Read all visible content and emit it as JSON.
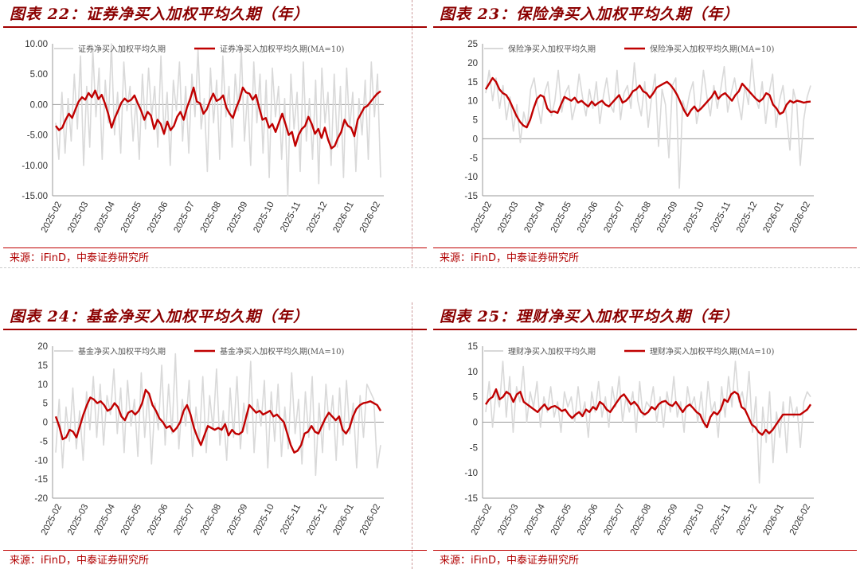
{
  "charts": [
    {
      "title": "图表 22：证券净买入加权平均久期（年）",
      "source": "来源：iFinD，中泰证券研究所",
      "chart_data": {
        "type": "line",
        "title": "图表 22：证券净买入加权平均久期（年）",
        "xlabel": "",
        "ylabel": "",
        "x_ticks": [
          "2025-02",
          "2025-03",
          "2025-04",
          "2025-05",
          "2025-06",
          "2025-07",
          "2025-08",
          "2025-09",
          "2025-10",
          "2025-11",
          "2025-12",
          "2026-01",
          "2026-02"
        ],
        "ylim": [
          -15,
          10
        ],
        "y_ticks": [
          10,
          5,
          0,
          -5,
          -10,
          -15
        ],
        "y_tick_labels": [
          "10.00",
          "5.00",
          "0.00",
          "-5.00",
          "-10.00",
          "-15.00"
        ],
        "legend_placement": "top",
        "series": [
          {
            "name": "证券净买入加权平均久期",
            "color": "#d9d9d9",
            "values": [
              -3,
              -9,
              2,
              -8,
              1,
              -6,
              5,
              -4,
              8,
              -10,
              3,
              -7,
              9,
              -2,
              6,
              -9,
              4,
              -3,
              10,
              -5,
              2,
              -8,
              7,
              -1,
              3,
              -6,
              1,
              -9,
              5,
              -4,
              6,
              -2,
              3,
              -7,
              8,
              -5,
              2,
              -10,
              4,
              -1,
              7,
              -6,
              3,
              -8,
              5,
              -2,
              9,
              -4,
              1,
              -11,
              6,
              -3,
              4,
              -9,
              8,
              -2,
              3,
              -7,
              5,
              -1,
              9,
              -6,
              2,
              -10,
              7,
              -3,
              5,
              -8,
              4,
              -12,
              6,
              -2,
              3,
              -9,
              1,
              -15,
              5,
              -4,
              2,
              -11,
              7,
              -6,
              1,
              -9,
              4,
              -13,
              6,
              -3,
              2,
              -10,
              5,
              -7,
              3,
              -12,
              6,
              -4,
              2,
              -11,
              1,
              -5,
              4,
              -9,
              7,
              -2,
              5,
              -12
            ]
          },
          {
            "name": "证券净买入加权平均久期(MA=10)",
            "color": "#c00000",
            "values": [
              -3.5,
              -4.2,
              -3.8,
              -2.5,
              -1.5,
              -2.2,
              -0.8,
              0.5,
              1.2,
              0.8,
              1.9,
              1.2,
              2.3,
              0.9,
              1.6,
              0.2,
              -1.5,
              -3.8,
              -2.2,
              -1.0,
              0.3,
              1.0,
              0.5,
              0.8,
              1.5,
              0.2,
              -1.0,
              -2.5,
              -1.2,
              -1.8,
              -4.0,
              -2.5,
              -3.2,
              -4.8,
              -2.8,
              -4.2,
              -3.5,
              -2.0,
              -1.2,
              -2.5,
              -0.5,
              1.0,
              2.8,
              0.5,
              0.2,
              -1.5,
              -0.8,
              0.6,
              1.8,
              0.6,
              0.9,
              1.5,
              -0.5,
              -1.5,
              -2.2,
              -0.5,
              0.8,
              2.8,
              2.0,
              1.8,
              0.8,
              1.6,
              -0.5,
              -2.5,
              -2.2,
              -3.8,
              -3.2,
              -4.5,
              -3.0,
              -1.5,
              -3.2,
              -5.0,
              -4.5,
              -6.8,
              -5.0,
              -4.0,
              -3.5,
              -2.0,
              -3.2,
              -4.8,
              -4.0,
              -5.5,
              -3.8,
              -5.8,
              -7.2,
              -6.8,
              -5.5,
              -4.5,
              -2.5,
              -3.5,
              -3.8,
              -5.2,
              -2.5,
              -1.5,
              -0.5,
              -0.2,
              0.5,
              1.2,
              1.8,
              2.2
            ]
          }
        ]
      }
    },
    {
      "title": "图表 23：保险净买入加权平均久期（年）",
      "source": "来源：iFinD，中泰证券研究所",
      "chart_data": {
        "type": "line",
        "title": "图表 23：保险净买入加权平均久期（年）",
        "xlabel": "",
        "ylabel": "",
        "x_ticks": [
          "2025-02",
          "2025-03",
          "2025-04",
          "2025-05",
          "2025-06",
          "2025-07",
          "2025-08",
          "2025-09",
          "2025-10",
          "2025-11",
          "2025-12",
          "2026-01",
          "2026-02"
        ],
        "ylim": [
          -15,
          25
        ],
        "y_ticks": [
          25,
          20,
          15,
          10,
          5,
          0,
          -5,
          -10,
          -15
        ],
        "y_tick_labels": [
          "25",
          "20",
          "15",
          "10",
          "5",
          "0",
          "-5",
          "-10",
          "-15"
        ],
        "legend_placement": "top",
        "series": [
          {
            "name": "保险净买入加权平均久期",
            "color": "#d9d9d9",
            "values": [
              12,
              18,
              10,
              16,
              8,
              14,
              5,
              11,
              2,
              9,
              -1,
              7,
              3,
              13,
              16,
              9,
              4,
              12,
              15,
              6,
              10,
              18,
              7,
              12,
              14,
              5,
              9,
              17,
              11,
              6,
              13,
              8,
              15,
              4,
              11,
              16,
              9,
              7,
              18,
              5,
              12,
              14,
              8,
              20,
              10,
              6,
              15,
              3,
              11,
              17,
              -2,
              13,
              9,
              -5,
              14,
              16,
              -13,
              10,
              7,
              12,
              15,
              4,
              9,
              18,
              11,
              6,
              14,
              8,
              13,
              19,
              7,
              12,
              16,
              10,
              5,
              14,
              9,
              21,
              11,
              8,
              15,
              4,
              12,
              17,
              3,
              10,
              14,
              6,
              -3,
              13,
              9,
              -7,
              5,
              11,
              14
            ]
          },
          {
            "name": "保险净买入加权平均久期(MA=10)",
            "color": "#c00000",
            "values": [
              13,
              14.5,
              16,
              15,
              13,
              12,
              11.5,
              10,
              8,
              6,
              4.5,
              3.5,
              3,
              5,
              8,
              10.5,
              11.5,
              11,
              8,
              7,
              7.2,
              6.8,
              9,
              11,
              10.5,
              10,
              10.8,
              9.5,
              10,
              9.2,
              8.5,
              9.8,
              8.8,
              9.5,
              10,
              9,
              8.5,
              9.5,
              10.5,
              11.5,
              9.5,
              10,
              11,
              12.5,
              13,
              14,
              12.5,
              12,
              10.8,
              12,
              13.5,
              14,
              14.5,
              15,
              14.2,
              13,
              11.5,
              9.5,
              7.5,
              6,
              7.5,
              8.5,
              7.2,
              8,
              9,
              10,
              11,
              12.5,
              10.5,
              11.5,
              12,
              11,
              10,
              11.5,
              12.5,
              14.5,
              13.5,
              12.5,
              11.5,
              10.5,
              9.8,
              10.5,
              12,
              11.5,
              9,
              8,
              6.5,
              7,
              9,
              10,
              9.5,
              10,
              9.8,
              9.5,
              9.7,
              9.8
            ]
          }
        ]
      }
    },
    {
      "title": "图表 24：基金净买入加权平均久期（年）",
      "source": "来源：iFinD，中泰证券研究所",
      "chart_data": {
        "type": "line",
        "title": "图表 24：基金净买入加权平均久期（年）",
        "xlabel": "",
        "ylabel": "",
        "x_ticks": [
          "2025-02",
          "2025-03",
          "2025-04",
          "2025-05",
          "2025-06",
          "2025-07",
          "2025-08",
          "2025-09",
          "2025-10",
          "2025-11",
          "2025-12",
          "2026-01",
          "2026-02"
        ],
        "ylim": [
          -20,
          20
        ],
        "y_ticks": [
          20,
          15,
          10,
          5,
          0,
          -5,
          -10,
          -15,
          -20
        ],
        "y_tick_labels": [
          "20",
          "15",
          "10",
          "5",
          "0",
          "-5",
          "-10",
          "-15",
          "-20"
        ],
        "legend_placement": "top",
        "series": [
          {
            "name": "基金净买入加权平均久期",
            "color": "#d9d9d9",
            "values": [
              -8,
              6,
              -12,
              4,
              -5,
              9,
              -7,
              3,
              -10,
              8,
              -2,
              12,
              -4,
              10,
              -6,
              7,
              2,
              14,
              -3,
              9,
              -8,
              11,
              -1,
              6,
              -9,
              13,
              -4,
              8,
              -11,
              5,
              -2,
              15,
              -6,
              10,
              -3,
              18,
              -7,
              6,
              -1,
              11,
              -9,
              4,
              -5,
              12,
              -8,
              7,
              -2,
              14,
              -6,
              3,
              -10,
              9,
              -4,
              12,
              -7,
              5,
              -3,
              16,
              -8,
              6,
              -1,
              11,
              -12,
              8,
              -5,
              10,
              -9,
              4,
              -7,
              13,
              -3,
              6,
              -11,
              8,
              -4,
              12,
              -14,
              5,
              -8,
              10,
              -2,
              7,
              -10,
              9,
              -6,
              11,
              -3,
              5,
              -12,
              7,
              -4,
              10,
              8,
              6,
              -12,
              -6
            ]
          },
          {
            "name": "基金净买入加权平均久期(MA=10)",
            "color": "#c00000",
            "values": [
              1.5,
              -1,
              -4.5,
              -4,
              -2,
              -2.5,
              -4,
              -1,
              2,
              4.5,
              6.5,
              6,
              5,
              5.5,
              4.5,
              3,
              3.5,
              5,
              4,
              1.5,
              0.5,
              2.5,
              3,
              2,
              3,
              5,
              8.5,
              7.5,
              4.5,
              3,
              1,
              0,
              -1.5,
              -1,
              -2.5,
              -1.5,
              0,
              3,
              4.5,
              2,
              -1.5,
              -4,
              -6,
              -3.5,
              -1,
              -1.5,
              -2,
              -1.5,
              -2,
              -0.5,
              -3.5,
              -2,
              -3,
              -3.2,
              -2.5,
              1,
              4.5,
              3.5,
              2.5,
              3,
              2,
              2.5,
              3,
              1.5,
              2,
              1,
              0,
              -3,
              -6,
              -8,
              -7.5,
              -6,
              -3,
              -2.5,
              -1,
              -2.5,
              -3,
              -1,
              1,
              2.5,
              1.5,
              0.5,
              1.5,
              -2,
              -3,
              -1.5,
              1.5,
              3.5,
              4.5,
              5,
              5.2,
              5.5,
              5,
              4.5,
              3
            ]
          }
        ]
      }
    },
    {
      "title": "图表 25：理财净买入加权平均久期（年）",
      "source": "来源：iFinD，中泰证券研究所",
      "chart_data": {
        "type": "line",
        "title": "图表 25：理财净买入加权平均久期（年）",
        "xlabel": "",
        "ylabel": "",
        "x_ticks": [
          "2025-02",
          "2025-03",
          "2025-04",
          "2025-05",
          "2025-06",
          "2025-07",
          "2025-08",
          "2025-09",
          "2025-10",
          "2025-11",
          "2025-12",
          "2026-01",
          "2026-02"
        ],
        "ylim": [
          -15,
          15
        ],
        "y_ticks": [
          15,
          10,
          5,
          0,
          -5,
          -10,
          -15
        ],
        "y_tick_labels": [
          "15",
          "10",
          "5",
          "0",
          "-5",
          "-10",
          "-15"
        ],
        "legend_placement": "top",
        "series": [
          {
            "name": "理财净买入加权平均久期",
            "color": "#d9d9d9",
            "values": [
              2,
              8,
              -1,
              6,
              3,
              12,
              1,
              9,
              -2,
              7,
              4,
              11,
              0,
              6,
              3,
              8,
              -1,
              5,
              2,
              7,
              1,
              4,
              -2,
              6,
              3,
              5,
              0,
              7,
              1,
              4,
              -3,
              6,
              2,
              8,
              1,
              5,
              -1,
              7,
              3,
              9,
              0,
              5,
              2,
              6,
              -2,
              8,
              1,
              4,
              3,
              7,
              0,
              5,
              -1,
              6,
              2,
              9,
              1,
              4,
              -2,
              7,
              3,
              5,
              0,
              6,
              -1,
              8,
              2,
              4,
              -3,
              7,
              1,
              9,
              3,
              12,
              4,
              6,
              2,
              10,
              -2,
              5,
              -12,
              3,
              -4,
              6,
              -8,
              2,
              -3,
              4,
              -6,
              5,
              1,
              3,
              -5,
              4,
              6,
              5
            ]
          },
          {
            "name": "理财净买入加权平均久期(MA=10)",
            "color": "#c00000",
            "values": [
              3.5,
              4.5,
              5,
              6.5,
              4.5,
              5,
              6,
              5.5,
              4,
              5.5,
              6,
              4,
              3.5,
              3,
              2.5,
              2,
              2.8,
              3.5,
              2.5,
              3,
              3.2,
              2.8,
              2.2,
              2.5,
              1.5,
              0.8,
              1.5,
              2,
              1.2,
              2.5,
              2,
              3,
              2.5,
              4,
              3.5,
              2.5,
              2,
              3,
              4,
              5,
              5.5,
              4.5,
              3.5,
              4,
              3.2,
              2,
              1.5,
              2,
              3,
              2.5,
              3.5,
              4,
              4.2,
              3.5,
              3.2,
              4,
              3,
              2,
              3,
              3.5,
              2.8,
              2,
              1.5,
              0,
              -1,
              1,
              2,
              1.5,
              2.5,
              4.5,
              4,
              5.5,
              6,
              5.5,
              3,
              2.5,
              1,
              -0.5,
              -1,
              -2,
              -2.5,
              -1.5,
              -2.2,
              -1.5,
              -0.5,
              0.5,
              1.5,
              1.5,
              1.5,
              1.5,
              1.5,
              1.5,
              2,
              2.5,
              3.5
            ]
          }
        ]
      }
    }
  ]
}
